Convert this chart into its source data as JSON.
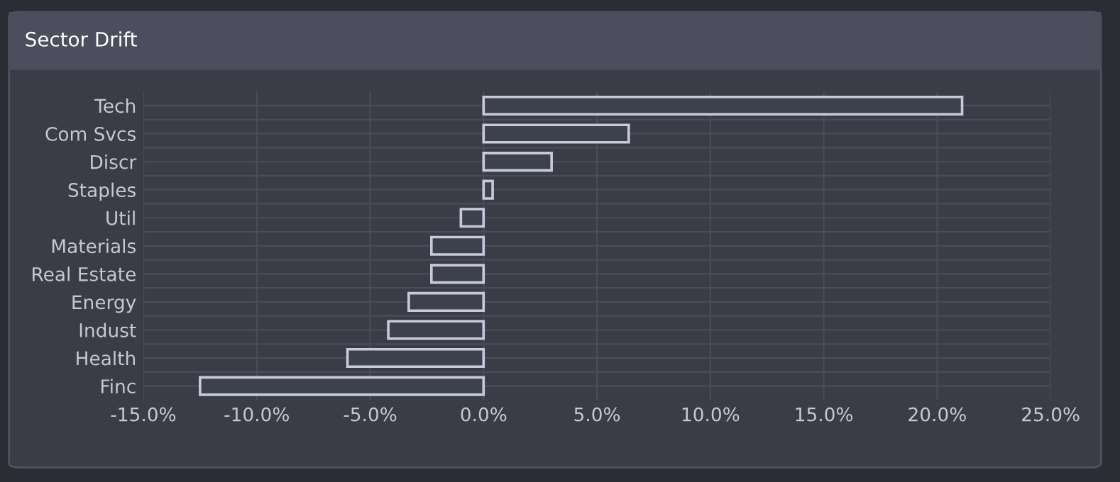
{
  "chart_data": {
    "type": "bar",
    "title": "Sector Drift",
    "orientation": "horizontal",
    "categories": [
      "Tech",
      "Com Svcs",
      "Discr",
      "Staples",
      "Util",
      "Materials",
      "Real Estate",
      "Energy",
      "Indust",
      "Health",
      "Finc"
    ],
    "values": [
      21.1,
      6.4,
      3.0,
      0.4,
      -1.0,
      -2.3,
      -2.3,
      -3.3,
      -4.2,
      -6.0,
      -12.5
    ],
    "color": "#3d404d",
    "xlim": [
      -15,
      25
    ],
    "xticks": [
      {
        "value": -15,
        "label": "-15.0%"
      },
      {
        "value": -10,
        "label": "-10.0%"
      },
      {
        "value": -5,
        "label": "-5.0%"
      },
      {
        "value": 0,
        "label": "0.0%"
      },
      {
        "value": 5,
        "label": "5.0%"
      },
      {
        "value": 10,
        "label": "10.0%"
      },
      {
        "value": 15,
        "label": "15.0%"
      },
      {
        "value": 20,
        "label": "20.0%"
      },
      {
        "value": 25,
        "label": "25.0%"
      }
    ],
    "grid": true,
    "legend": false
  }
}
